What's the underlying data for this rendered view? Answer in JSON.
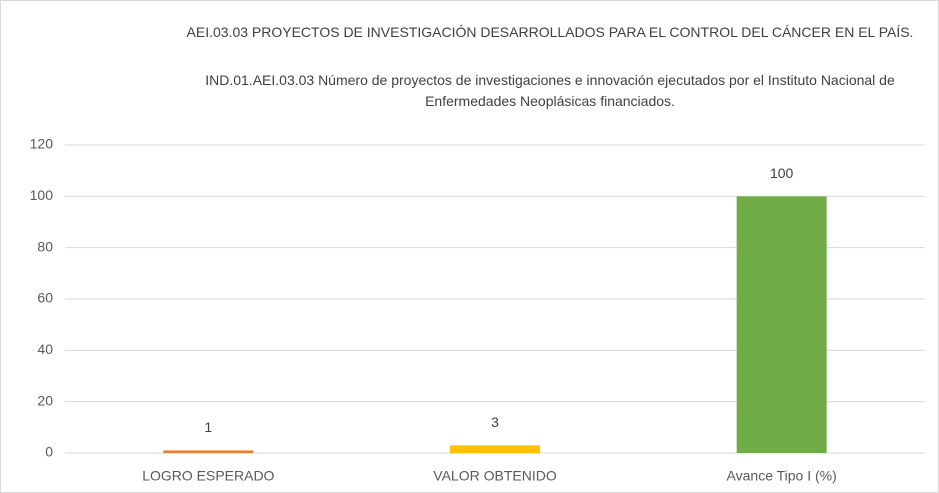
{
  "chart_data": {
    "type": "bar",
    "title": "AEI.03.03 PROYECTOS DE INVESTIGACIÓN DESARROLLADOS PARA EL CONTROL DEL CÁNCER EN EL PAÍS.",
    "subtitle": "IND.01.AEI.03.03 Número de proyectos de investigaciones e innovación ejecutados por el Instituto Nacional de Enfermedades Neoplásicas financiados.",
    "categories": [
      "LOGRO ESPERADO",
      "VALOR OBTENIDO",
      "Avance Tipo I (%)"
    ],
    "values": [
      1,
      3,
      100
    ],
    "colors": [
      "#ed7d31",
      "#ffc000",
      "#70ad47"
    ],
    "ylim": [
      0,
      120
    ],
    "yticks": [
      0,
      20,
      40,
      60,
      80,
      100,
      120
    ],
    "grid": true
  }
}
